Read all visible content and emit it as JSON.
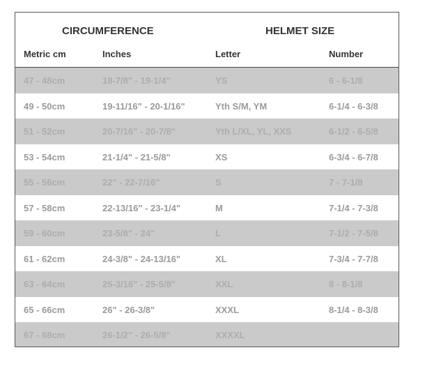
{
  "headings": {
    "circumference": "CIRCUMFERENCE",
    "helmet_size": "HELMET SIZE"
  },
  "columns": [
    "Metric cm",
    "Inches",
    "Letter",
    "Number"
  ],
  "colors": {
    "row_shaded": "#cacaca",
    "border": "#555555"
  },
  "rows": [
    [
      "47 - 48cm",
      "18-7/8\" - 19-1/4\"",
      "YS",
      "6 - 6-1/8"
    ],
    [
      "49 - 50cm",
      "19-11/16\" - 20-1/16\"",
      "Yth S/M, YM",
      "6-1/4 - 6-3/8"
    ],
    [
      "51 - 52cm",
      "20-7/16\" - 20-7/8\"",
      "Yth L/XL, YL, XXS",
      "6-1/2 - 6-5/8"
    ],
    [
      "53 - 54cm",
      "21-1/4\" - 21-5/8\"",
      "XS",
      "6-3/4 - 6-7/8"
    ],
    [
      "55 - 56cm",
      "22\" - 22-7/16\"",
      "S",
      "7 - 7-1/8"
    ],
    [
      "57 - 58cm",
      "22-13/16\" - 23-1/4\"",
      "M",
      "7-1/4 - 7-3/8"
    ],
    [
      "59 - 60cm",
      "23-5/8\" - 24\"",
      "L",
      "7-1/2 - 7-5/8"
    ],
    [
      "61 - 62cm",
      "24-3/8\" - 24-13/16\"",
      "XL",
      "7-3/4 - 7-7/8"
    ],
    [
      "63 - 64cm",
      "25-3/16\" - 25-5/8\"",
      "XXL",
      "8 - 8-1/8"
    ],
    [
      "65 - 66cm",
      "26\" - 26-3/8\"",
      "XXXL",
      "8-1/4 - 8-3/8"
    ],
    [
      "67 - 68cm",
      "26-1/2\" - 26-5/8\"",
      "XXXXL",
      ""
    ]
  ]
}
